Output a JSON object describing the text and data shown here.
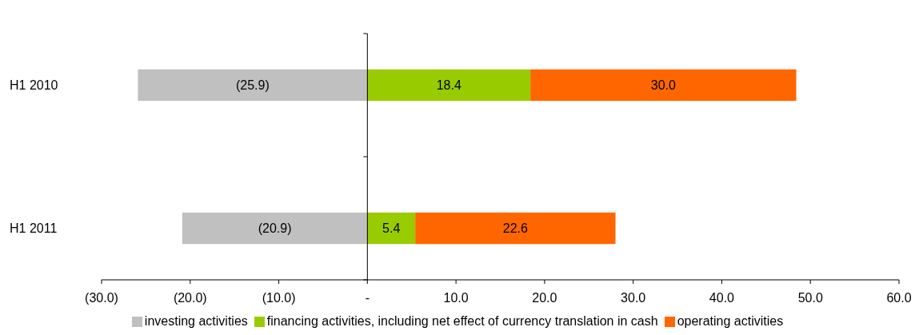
{
  "chart_data": {
    "type": "bar",
    "orientation": "horizontal",
    "stacked": true,
    "categories": [
      "H1 2010",
      "H1 2011"
    ],
    "series": [
      {
        "name": "investing activities",
        "color": "#c0c0c0",
        "values": [
          -25.9,
          -20.9
        ],
        "value_labels": [
          "(25.9)",
          "(20.9)"
        ]
      },
      {
        "name": "financing activities, including net effect of currency translation in cash",
        "color": "#99cc00",
        "values": [
          18.4,
          5.4
        ],
        "value_labels": [
          "18.4",
          "5.4"
        ]
      },
      {
        "name": "operating activities",
        "color": "#ff6600",
        "values": [
          30.0,
          22.6
        ],
        "value_labels": [
          "30.0",
          "22.6"
        ]
      }
    ],
    "xlim": [
      -30,
      60
    ],
    "xticks": [
      {
        "value": -30,
        "label": "(30.0)"
      },
      {
        "value": -20,
        "label": "(20.0)"
      },
      {
        "value": -10,
        "label": "(10.0)"
      },
      {
        "value": 0,
        "label": "-"
      },
      {
        "value": 10,
        "label": "10.0"
      },
      {
        "value": 20,
        "label": "20.0"
      },
      {
        "value": 30,
        "label": "30.0"
      },
      {
        "value": 40,
        "label": "40.0"
      },
      {
        "value": 50,
        "label": "50.0"
      },
      {
        "value": 60,
        "label": "60.0"
      }
    ],
    "legend": "bottom"
  }
}
